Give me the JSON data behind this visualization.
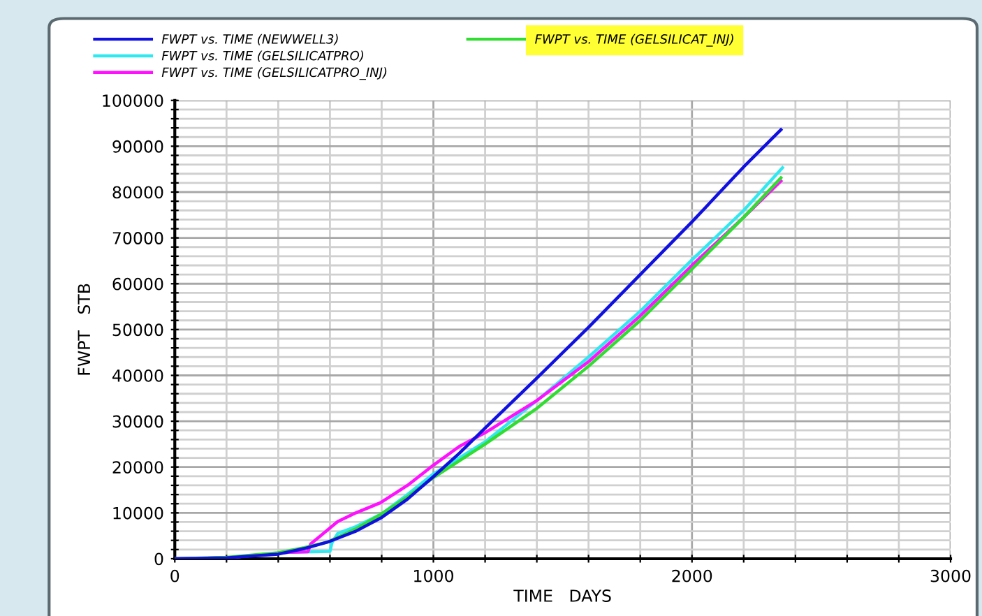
{
  "chart_data": {
    "type": "line",
    "xlabel": "TIME   DAYS",
    "ylabel": "FWPT   STB",
    "xlim": [
      0,
      3000
    ],
    "ylim": [
      0,
      100000
    ],
    "xticks": [
      0,
      {
        "value": 200,
        "label": null
      },
      {
        "value": 400,
        "label": null
      },
      {
        "value": 600,
        "label": null
      },
      {
        "value": 800,
        "label": null
      },
      1000,
      {
        "value": 1200,
        "label": null
      },
      {
        "value": 1400,
        "label": null
      },
      {
        "value": 1600,
        "label": null
      },
      {
        "value": 1800,
        "label": null
      },
      2000,
      {
        "value": 2200,
        "label": null
      },
      {
        "value": 2400,
        "label": null
      },
      {
        "value": 2600,
        "label": null
      },
      {
        "value": 2800,
        "label": null
      },
      3000
    ],
    "yticks": [
      0,
      {
        "value": 2000,
        "label": null
      },
      {
        "value": 4000,
        "label": null
      },
      {
        "value": 6000,
        "label": null
      },
      {
        "value": 8000,
        "label": null
      },
      10000,
      {
        "value": 12000,
        "label": null
      },
      {
        "value": 14000,
        "label": null
      },
      {
        "value": 16000,
        "label": null
      },
      {
        "value": 18000,
        "label": null
      },
      20000,
      {
        "value": 22000,
        "label": null
      },
      {
        "value": 24000,
        "label": null
      },
      {
        "value": 26000,
        "label": null
      },
      {
        "value": 28000,
        "label": null
      },
      30000,
      {
        "value": 32000,
        "label": null
      },
      {
        "value": 34000,
        "label": null
      },
      {
        "value": 36000,
        "label": null
      },
      {
        "value": 38000,
        "label": null
      },
      40000,
      {
        "value": 42000,
        "label": null
      },
      {
        "value": 44000,
        "label": null
      },
      {
        "value": 46000,
        "label": null
      },
      {
        "value": 48000,
        "label": null
      },
      50000,
      {
        "value": 52000,
        "label": null
      },
      {
        "value": 54000,
        "label": null
      },
      {
        "value": 56000,
        "label": null
      },
      {
        "value": 58000,
        "label": null
      },
      60000,
      {
        "value": 62000,
        "label": null
      },
      {
        "value": 64000,
        "label": null
      },
      {
        "value": 66000,
        "label": null
      },
      {
        "value": 68000,
        "label": null
      },
      70000,
      {
        "value": 72000,
        "label": null
      },
      {
        "value": 74000,
        "label": null
      },
      {
        "value": 76000,
        "label": null
      },
      {
        "value": 78000,
        "label": null
      },
      80000,
      {
        "value": 82000,
        "label": null
      },
      {
        "value": 84000,
        "label": null
      },
      {
        "value": 86000,
        "label": null
      },
      {
        "value": 88000,
        "label": null
      },
      90000,
      {
        "value": 92000,
        "label": null
      },
      {
        "value": 94000,
        "label": null
      },
      {
        "value": 96000,
        "label": null
      },
      {
        "value": 98000,
        "label": null
      },
      100000
    ],
    "grid": true,
    "legend": "top",
    "marker": "none",
    "line_style": "solid",
    "series": [
      {
        "name": "FWPT vs. TIME (NEWWELL3)",
        "color": "#1010e0",
        "x": [
          0,
          200,
          400,
          500,
          600,
          700,
          800,
          900,
          1000,
          1100,
          1200,
          1400,
          1600,
          1800,
          2000,
          2200,
          2344
        ],
        "values": [
          0,
          200,
          1000,
          2200,
          3800,
          6000,
          9000,
          13000,
          17900,
          23000,
          28500,
          39400,
          50500,
          62000,
          73500,
          85500,
          93600
        ]
      },
      {
        "name": "FWPT vs. TIME (GELSILICATPRO)",
        "color": "#30e8f0",
        "x": [
          0,
          200,
          440,
          600,
          608,
          630,
          700,
          800,
          900,
          1000,
          1200,
          1400,
          1600,
          1800,
          2000,
          2200,
          2350
        ],
        "values": [
          0,
          200,
          1400,
          1600,
          3500,
          5500,
          7000,
          9800,
          14000,
          18500,
          25500,
          34500,
          44000,
          54000,
          65200,
          76000,
          85300
        ]
      },
      {
        "name": "FWPT vs. TIME (GELSILICATPRO_INJ)",
        "color": "#ff10ff",
        "x": [
          0,
          200,
          440,
          515,
          525,
          630,
          700,
          795,
          900,
          1000,
          1100,
          1200,
          1400,
          1600,
          1800,
          2000,
          2200,
          2344
        ],
        "values": [
          0,
          200,
          1400,
          1500,
          3200,
          8100,
          10000,
          12200,
          16000,
          20400,
          24500,
          27500,
          34500,
          43000,
          53000,
          64000,
          74500,
          82400
        ]
      },
      {
        "name": "FWPT vs. TIME (GELSILICAT_INJ)",
        "color": "#30dd30",
        "x": [
          0,
          200,
          400,
          500,
          590,
          700,
          795,
          900,
          1000,
          1200,
          1400,
          1600,
          1800,
          2000,
          2200,
          2344
        ],
        "values": [
          0,
          300,
          1300,
          2400,
          3600,
          6500,
          9600,
          13500,
          17700,
          25000,
          32800,
          42000,
          52000,
          63200,
          74500,
          83100
        ]
      }
    ]
  }
}
